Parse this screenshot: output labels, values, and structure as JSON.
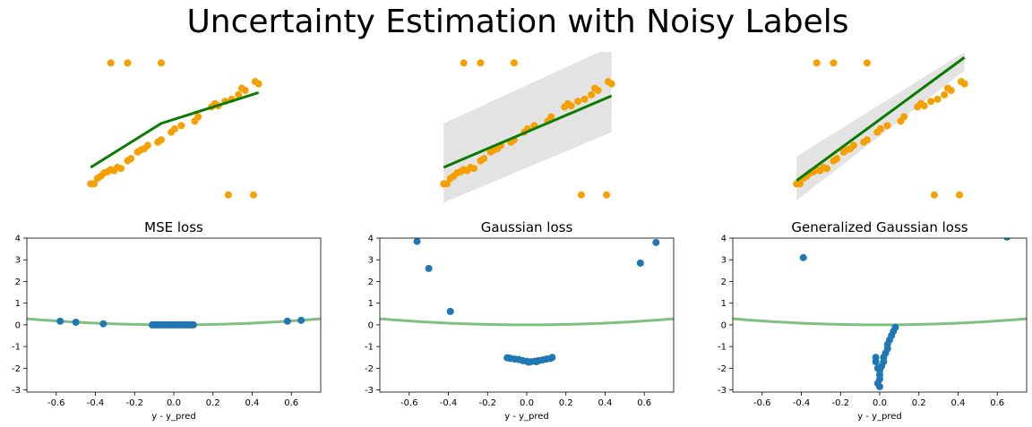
{
  "title": "Uncertainty Estimation with Noisy Labels",
  "colors": {
    "points_top": "#f5a000",
    "fit_line": "#0a7a00",
    "band": "#e3e3e3",
    "points_bottom": "#1f77b4",
    "loss_curve": "#7fbf7f"
  },
  "chart_data": [
    {
      "type": "scatter",
      "panel": "top-1",
      "axes_visible": false,
      "points": [
        [
          -0.62,
          -0.05
        ],
        [
          -0.6,
          -0.05
        ],
        [
          -0.58,
          0.0
        ],
        [
          -0.56,
          0.02
        ],
        [
          -0.54,
          0.05
        ],
        [
          -0.52,
          0.06
        ],
        [
          -0.5,
          0.08
        ],
        [
          -0.48,
          0.07
        ],
        [
          -0.46,
          0.1
        ],
        [
          -0.44,
          0.09
        ],
        [
          -0.4,
          0.16
        ],
        [
          -0.38,
          0.18
        ],
        [
          -0.34,
          0.24
        ],
        [
          -0.32,
          0.26
        ],
        [
          -0.3,
          0.27
        ],
        [
          -0.28,
          0.3
        ],
        [
          -0.22,
          0.33
        ],
        [
          -0.2,
          0.35
        ],
        [
          -0.14,
          0.42
        ],
        [
          -0.12,
          0.45
        ],
        [
          -0.08,
          0.48
        ],
        [
          0.0,
          0.52
        ],
        [
          0.02,
          0.56
        ],
        [
          0.1,
          0.65
        ],
        [
          0.12,
          0.68
        ],
        [
          0.14,
          0.66
        ],
        [
          0.18,
          0.7
        ],
        [
          0.22,
          0.72
        ],
        [
          0.26,
          0.76
        ],
        [
          0.28,
          0.82
        ],
        [
          0.3,
          0.8
        ],
        [
          0.36,
          0.88
        ],
        [
          0.38,
          0.86
        ],
        [
          -0.5,
          1.05
        ],
        [
          -0.4,
          1.05
        ],
        [
          -0.2,
          1.05
        ],
        [
          0.2,
          -0.15
        ],
        [
          0.35,
          -0.15
        ]
      ],
      "fit_line": [
        [
          -0.62,
          0.1
        ],
        [
          -0.2,
          0.5
        ],
        [
          0.38,
          0.78
        ]
      ],
      "xlim": [
        -1.0,
        0.75
      ],
      "ylim": [
        -0.25,
        1.15
      ]
    },
    {
      "type": "scatter",
      "panel": "top-2",
      "axes_visible": false,
      "points": [
        [
          -0.62,
          -0.05
        ],
        [
          -0.6,
          -0.05
        ],
        [
          -0.58,
          0.0
        ],
        [
          -0.56,
          0.02
        ],
        [
          -0.54,
          0.05
        ],
        [
          -0.52,
          0.06
        ],
        [
          -0.5,
          0.08
        ],
        [
          -0.48,
          0.07
        ],
        [
          -0.46,
          0.1
        ],
        [
          -0.44,
          0.09
        ],
        [
          -0.4,
          0.16
        ],
        [
          -0.38,
          0.18
        ],
        [
          -0.34,
          0.24
        ],
        [
          -0.32,
          0.26
        ],
        [
          -0.3,
          0.27
        ],
        [
          -0.28,
          0.3
        ],
        [
          -0.22,
          0.33
        ],
        [
          -0.2,
          0.35
        ],
        [
          -0.14,
          0.42
        ],
        [
          -0.12,
          0.45
        ],
        [
          -0.08,
          0.48
        ],
        [
          0.0,
          0.52
        ],
        [
          0.02,
          0.56
        ],
        [
          0.1,
          0.65
        ],
        [
          0.12,
          0.68
        ],
        [
          0.14,
          0.66
        ],
        [
          0.18,
          0.7
        ],
        [
          0.22,
          0.72
        ],
        [
          0.26,
          0.76
        ],
        [
          0.28,
          0.82
        ],
        [
          0.3,
          0.8
        ],
        [
          0.36,
          0.88
        ],
        [
          0.38,
          0.86
        ],
        [
          -0.5,
          1.05
        ],
        [
          -0.4,
          1.05
        ],
        [
          -0.2,
          1.05
        ],
        [
          0.2,
          -0.15
        ],
        [
          0.35,
          -0.15
        ]
      ],
      "fit_line": [
        [
          -0.62,
          0.1
        ],
        [
          0.38,
          0.75
        ]
      ],
      "band": {
        "x": [
          -0.62,
          0.38
        ],
        "lower": [
          -0.22,
          0.42
        ],
        "upper": [
          0.5,
          1.2
        ]
      },
      "xlim": [
        -1.0,
        0.75
      ],
      "ylim": [
        -0.25,
        1.15
      ]
    },
    {
      "type": "scatter",
      "panel": "top-3",
      "axes_visible": false,
      "points": [
        [
          -0.62,
          -0.05
        ],
        [
          -0.6,
          -0.05
        ],
        [
          -0.58,
          0.0
        ],
        [
          -0.56,
          0.02
        ],
        [
          -0.54,
          0.05
        ],
        [
          -0.52,
          0.06
        ],
        [
          -0.5,
          0.08
        ],
        [
          -0.48,
          0.07
        ],
        [
          -0.46,
          0.1
        ],
        [
          -0.44,
          0.09
        ],
        [
          -0.4,
          0.16
        ],
        [
          -0.38,
          0.18
        ],
        [
          -0.34,
          0.24
        ],
        [
          -0.32,
          0.26
        ],
        [
          -0.3,
          0.27
        ],
        [
          -0.28,
          0.3
        ],
        [
          -0.22,
          0.33
        ],
        [
          -0.2,
          0.35
        ],
        [
          -0.14,
          0.42
        ],
        [
          -0.12,
          0.45
        ],
        [
          -0.08,
          0.48
        ],
        [
          0.0,
          0.52
        ],
        [
          0.02,
          0.56
        ],
        [
          0.1,
          0.65
        ],
        [
          0.12,
          0.68
        ],
        [
          0.14,
          0.66
        ],
        [
          0.18,
          0.7
        ],
        [
          0.22,
          0.72
        ],
        [
          0.26,
          0.76
        ],
        [
          0.28,
          0.82
        ],
        [
          0.3,
          0.8
        ],
        [
          0.36,
          0.88
        ],
        [
          0.38,
          0.86
        ],
        [
          -0.5,
          1.05
        ],
        [
          -0.4,
          1.05
        ],
        [
          -0.2,
          1.05
        ],
        [
          0.2,
          -0.15
        ],
        [
          0.35,
          -0.15
        ]
      ],
      "fit_line": [
        [
          -0.62,
          -0.02
        ],
        [
          0.38,
          1.1
        ]
      ],
      "band": {
        "x": [
          -0.62,
          0.38
        ],
        "lower": [
          -0.2,
          0.98
        ],
        "upper": [
          0.2,
          1.15
        ]
      },
      "xlim": [
        -1.0,
        0.75
      ],
      "ylim": [
        -0.25,
        1.15
      ]
    },
    {
      "type": "scatter",
      "panel": "bottom-1",
      "title": "MSE loss",
      "xlabel": "y - y_pred",
      "xlim": [
        -0.75,
        0.75
      ],
      "ylim": [
        -3.1,
        4.0
      ],
      "xticks": [
        "-0.6",
        "-0.4",
        "-0.2",
        "0.0",
        "0.2",
        "0.4",
        "0.6"
      ],
      "yticks": [
        "4",
        "3",
        "2",
        "1",
        "0",
        "-1",
        "-2",
        "-3"
      ],
      "points": [
        [
          -0.58,
          0.17
        ],
        [
          -0.5,
          0.12
        ],
        [
          -0.36,
          0.05
        ],
        [
          -0.11,
          0.0
        ],
        [
          -0.1,
          0.0
        ],
        [
          -0.09,
          0.0
        ],
        [
          -0.08,
          0.0
        ],
        [
          -0.07,
          0.0
        ],
        [
          -0.06,
          0.0
        ],
        [
          -0.05,
          0.0
        ],
        [
          -0.04,
          0.0
        ],
        [
          -0.03,
          0.0
        ],
        [
          -0.02,
          0.0
        ],
        [
          -0.01,
          0.0
        ],
        [
          0.0,
          0.0
        ],
        [
          0.01,
          0.0
        ],
        [
          0.02,
          0.0
        ],
        [
          0.03,
          0.0
        ],
        [
          0.04,
          0.0
        ],
        [
          0.05,
          0.0
        ],
        [
          0.06,
          0.0
        ],
        [
          0.07,
          0.0
        ],
        [
          0.08,
          0.0
        ],
        [
          0.09,
          0.0
        ],
        [
          0.1,
          0.0
        ],
        [
          0.58,
          0.17
        ],
        [
          0.65,
          0.21
        ]
      ],
      "curve": "0.5*x^2"
    },
    {
      "type": "scatter",
      "panel": "bottom-2",
      "title": "Gaussian loss",
      "xlabel": "y - y_pred",
      "xlim": [
        -0.75,
        0.75
      ],
      "ylim": [
        -3.1,
        4.0
      ],
      "xticks": [
        "-0.6",
        "-0.4",
        "-0.2",
        "0.0",
        "0.2",
        "0.4",
        "0.6"
      ],
      "yticks": [
        "4",
        "3",
        "2",
        "1",
        "0",
        "-1",
        "-2",
        "-3"
      ],
      "points": [
        [
          -0.56,
          3.85
        ],
        [
          -0.5,
          2.6
        ],
        [
          -0.39,
          0.62
        ],
        [
          -0.1,
          -1.52
        ],
        [
          -0.08,
          -1.55
        ],
        [
          -0.06,
          -1.58
        ],
        [
          -0.04,
          -1.6
        ],
        [
          -0.02,
          -1.65
        ],
        [
          0.0,
          -1.68
        ],
        [
          0.02,
          -1.7
        ],
        [
          0.04,
          -1.68
        ],
        [
          0.06,
          -1.65
        ],
        [
          0.08,
          -1.62
        ],
        [
          0.1,
          -1.58
        ],
        [
          0.12,
          -1.55
        ],
        [
          0.13,
          -1.5
        ],
        [
          -0.09,
          -1.53
        ],
        [
          0.01,
          -1.72
        ],
        [
          0.05,
          -1.7
        ],
        [
          0.58,
          2.85
        ],
        [
          0.66,
          3.8
        ]
      ],
      "curve": "0.5*x^2"
    },
    {
      "type": "scatter",
      "panel": "bottom-3",
      "title": "Generalized Gaussian loss",
      "xlabel": "y - y_pred",
      "xlim": [
        -0.75,
        0.75
      ],
      "ylim": [
        -3.1,
        4.0
      ],
      "xticks": [
        "-0.6",
        "-0.4",
        "-0.2",
        "0.0",
        "0.2",
        "0.4",
        "0.6"
      ],
      "yticks": [
        "4",
        "3",
        "2",
        "1",
        "0",
        "-1",
        "-2",
        "-3"
      ],
      "points": [
        [
          -0.39,
          3.1
        ],
        [
          0.65,
          4.05
        ],
        [
          0.08,
          -0.12
        ],
        [
          0.07,
          -0.3
        ],
        [
          0.06,
          -0.5
        ],
        [
          0.05,
          -0.7
        ],
        [
          0.04,
          -0.9
        ],
        [
          0.04,
          -1.1
        ],
        [
          0.03,
          -1.3
        ],
        [
          0.02,
          -1.5
        ],
        [
          0.02,
          -1.7
        ],
        [
          0.01,
          -1.9
        ],
        [
          0.0,
          -2.1
        ],
        [
          -0.02,
          -1.5
        ],
        [
          -0.02,
          -1.7
        ],
        [
          -0.01,
          -2.0
        ],
        [
          0.0,
          -2.3
        ],
        [
          0.0,
          -2.5
        ],
        [
          -0.01,
          -2.7
        ],
        [
          0.0,
          -2.85
        ]
      ],
      "curve": "0.5*x^2"
    }
  ]
}
